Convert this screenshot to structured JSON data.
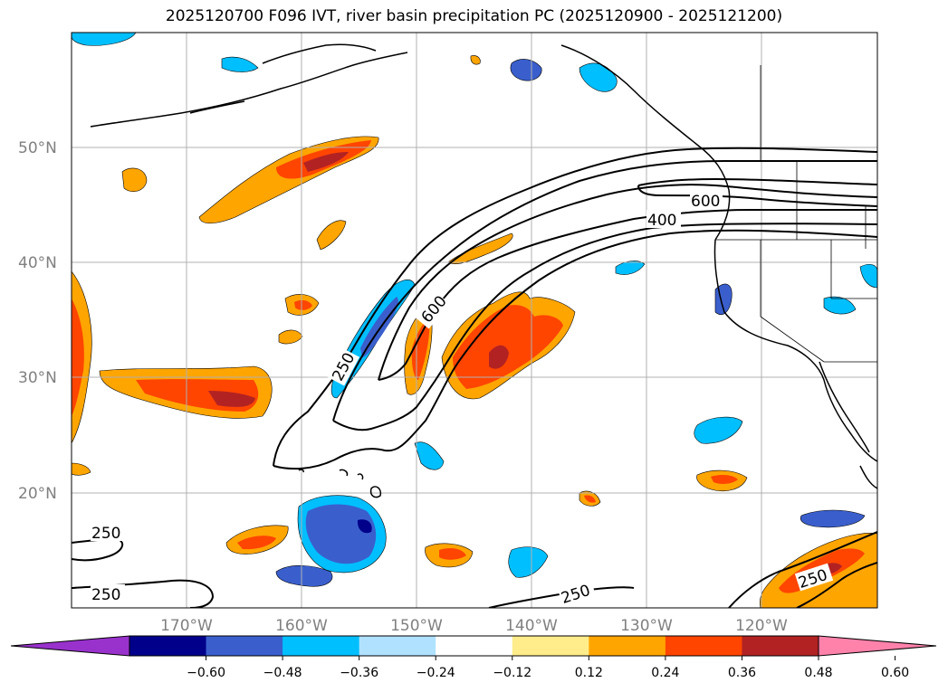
{
  "title": "2025120700 F096 IVT, river basin precipitation PC (2025120900 - 2025121200)",
  "lat_labels": [
    "50°N",
    "40°N",
    "30°N",
    "20°N"
  ],
  "lon_labels": [
    "170°W",
    "160°W",
    "150°W",
    "140°W",
    "130°W",
    "120°W"
  ],
  "contour_labels": [
    "250",
    "600",
    "600",
    "400",
    "250",
    "250",
    "250",
    "250"
  ],
  "colorbar": {
    "ticks": [
      "−0.60",
      "−0.48",
      "−0.36",
      "−0.24",
      "−0.12",
      "0.12",
      "0.24",
      "0.36",
      "0.48",
      "0.60"
    ],
    "colors": [
      "#9932cc",
      "#00008b",
      "#3a5fcd",
      "#00bfff",
      "#b0e2ff",
      "#ffffff",
      "#ffec8b",
      "#ffa500",
      "#ff4500",
      "#b22222",
      "#ff82ab"
    ]
  },
  "colors": {
    "shade_orange": "#ffa500",
    "shade_red": "#ff4500",
    "shade_darkred": "#b22222",
    "shade_cyan": "#00bfff",
    "shade_blue": "#3a5fcd",
    "shade_navy": "#00008b",
    "grid": "#b0b0b0"
  }
}
